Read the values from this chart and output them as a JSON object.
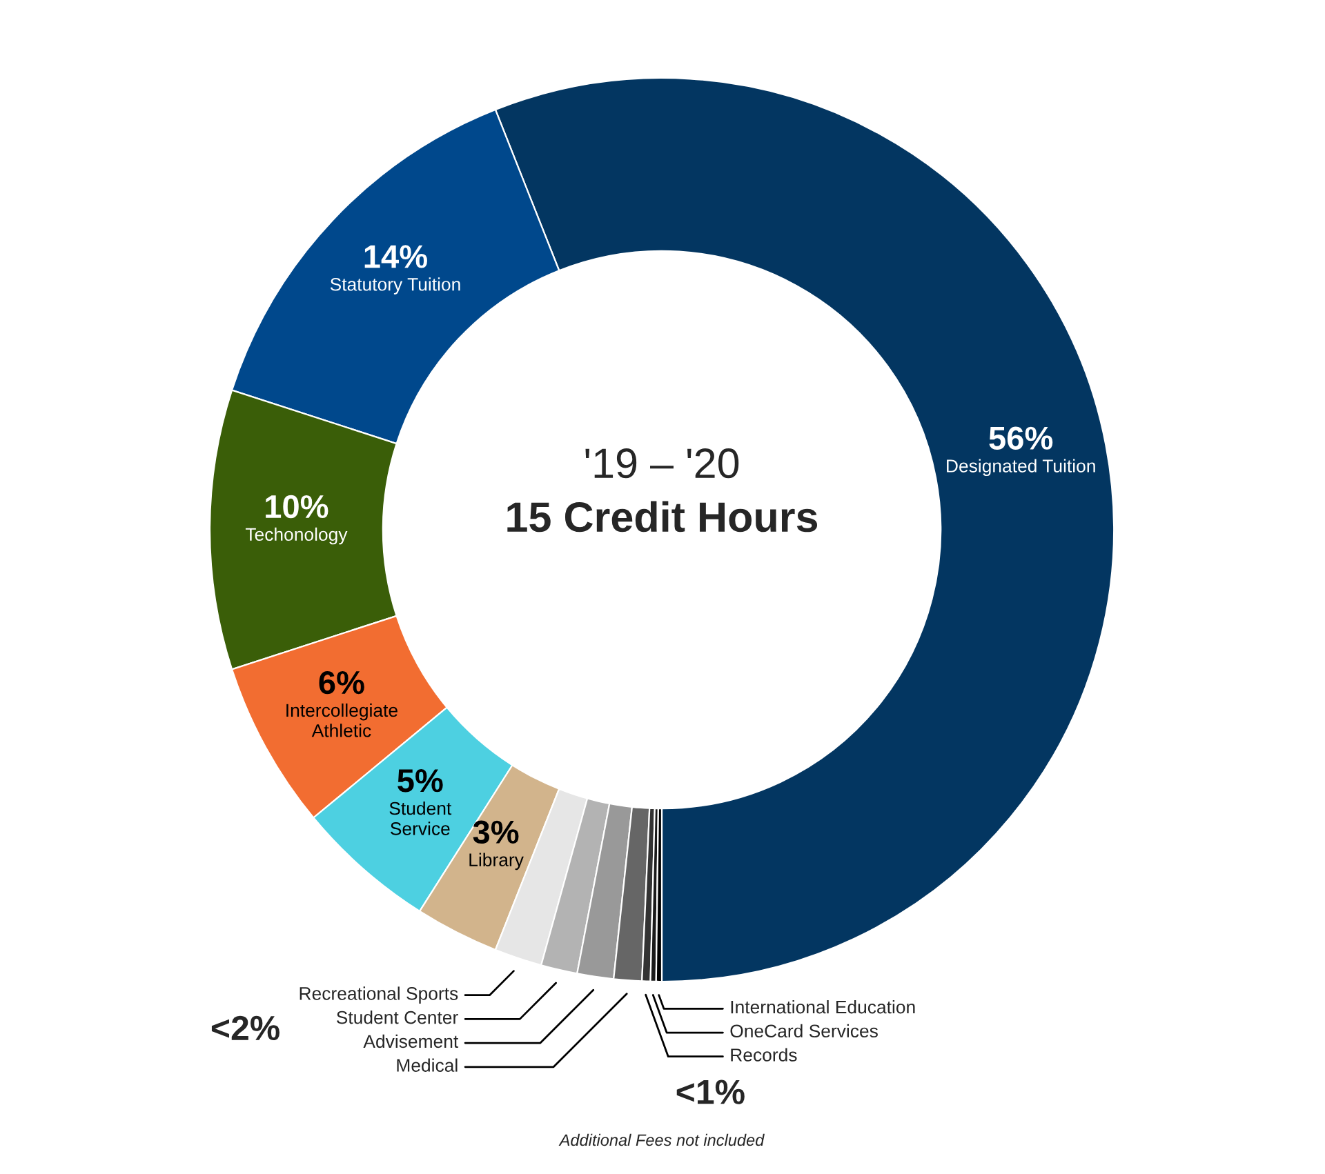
{
  "chart_data": {
    "type": "donut",
    "title": "'19 – '20",
    "subtitle": "15 Credit Hours",
    "categories": [
      "Designated Tuition",
      "Statutory Tuition",
      "Techonology",
      "Intercollegiate\nAthletic",
      "Student\nService",
      "Library",
      "Recreational Sports",
      "Student Center",
      "Advisement",
      "Medical",
      "Records",
      "OneCard Services",
      "International Education"
    ],
    "values": [
      56,
      14,
      10,
      6,
      5,
      3,
      1.7,
      1.3,
      1.3,
      1.0,
      0.3,
      0.2,
      0.2
    ],
    "colors": [
      "#033661",
      "#00488c",
      "#3a5e08",
      "#f26d31",
      "#4dd0e1",
      "#d2b48c",
      "#e6e6e6",
      "#b3b3b3",
      "#999999",
      "#666666",
      "#333333",
      "#1a1a1a",
      "#000000"
    ],
    "value_labels": [
      "56%",
      "14%",
      "10%",
      "6%",
      "5%",
      "3%",
      "<2%",
      null,
      null,
      null,
      "<1%",
      null,
      null
    ],
    "annotations": [
      "Additional Fees not included"
    ]
  }
}
